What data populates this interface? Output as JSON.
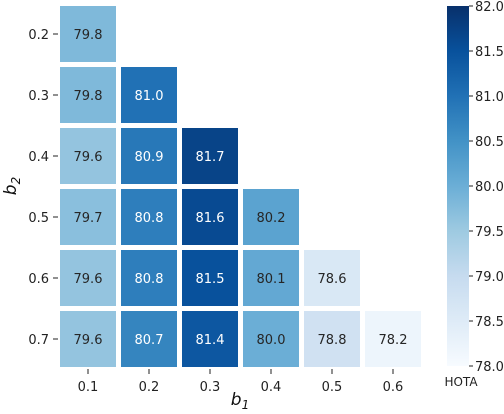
{
  "chart_data": {
    "type": "heatmap",
    "x_categories": [
      "0.1",
      "0.2",
      "0.3",
      "0.4",
      "0.5",
      "0.6"
    ],
    "y_categories": [
      "0.2",
      "0.3",
      "0.4",
      "0.5",
      "0.6",
      "0.7"
    ],
    "xlabel": "b",
    "xlabel_sub": "1",
    "ylabel": "b",
    "ylabel_sub": "2",
    "cells": [
      {
        "x": "0.1",
        "y": "0.2",
        "value": 79.8,
        "label": "79.8"
      },
      {
        "x": "0.1",
        "y": "0.3",
        "value": 79.8,
        "label": "79.8"
      },
      {
        "x": "0.2",
        "y": "0.3",
        "value": 81.0,
        "label": "81.0"
      },
      {
        "x": "0.1",
        "y": "0.4",
        "value": 79.6,
        "label": "79.6"
      },
      {
        "x": "0.2",
        "y": "0.4",
        "value": 80.9,
        "label": "80.9"
      },
      {
        "x": "0.3",
        "y": "0.4",
        "value": 81.7,
        "label": "81.7"
      },
      {
        "x": "0.1",
        "y": "0.5",
        "value": 79.7,
        "label": "79.7"
      },
      {
        "x": "0.2",
        "y": "0.5",
        "value": 80.8,
        "label": "80.8"
      },
      {
        "x": "0.3",
        "y": "0.5",
        "value": 81.6,
        "label": "81.6"
      },
      {
        "x": "0.4",
        "y": "0.5",
        "value": 80.2,
        "label": "80.2"
      },
      {
        "x": "0.1",
        "y": "0.6",
        "value": 79.6,
        "label": "79.6"
      },
      {
        "x": "0.2",
        "y": "0.6",
        "value": 80.8,
        "label": "80.8"
      },
      {
        "x": "0.3",
        "y": "0.6",
        "value": 81.5,
        "label": "81.5"
      },
      {
        "x": "0.4",
        "y": "0.6",
        "value": 80.1,
        "label": "80.1"
      },
      {
        "x": "0.5",
        "y": "0.6",
        "value": 78.6,
        "label": "78.6"
      },
      {
        "x": "0.1",
        "y": "0.7",
        "value": 79.6,
        "label": "79.6"
      },
      {
        "x": "0.2",
        "y": "0.7",
        "value": 80.7,
        "label": "80.7"
      },
      {
        "x": "0.3",
        "y": "0.7",
        "value": 81.4,
        "label": "81.4"
      },
      {
        "x": "0.4",
        "y": "0.7",
        "value": 80.0,
        "label": "80.0"
      },
      {
        "x": "0.5",
        "y": "0.7",
        "value": 78.8,
        "label": "78.8"
      },
      {
        "x": "0.6",
        "y": "0.7",
        "value": 78.2,
        "label": "78.2"
      }
    ],
    "colorbar": {
      "label": "HOTA",
      "range": [
        78.0,
        82.0
      ],
      "ticks": [
        "78.0",
        "78.5",
        "79.0",
        "79.5",
        "80.0",
        "80.5",
        "81.0",
        "81.5",
        "82.0"
      ],
      "colormap": "Blues",
      "low_color": "#f7fbff",
      "high_color": "#08306b"
    },
    "grid": false
  }
}
